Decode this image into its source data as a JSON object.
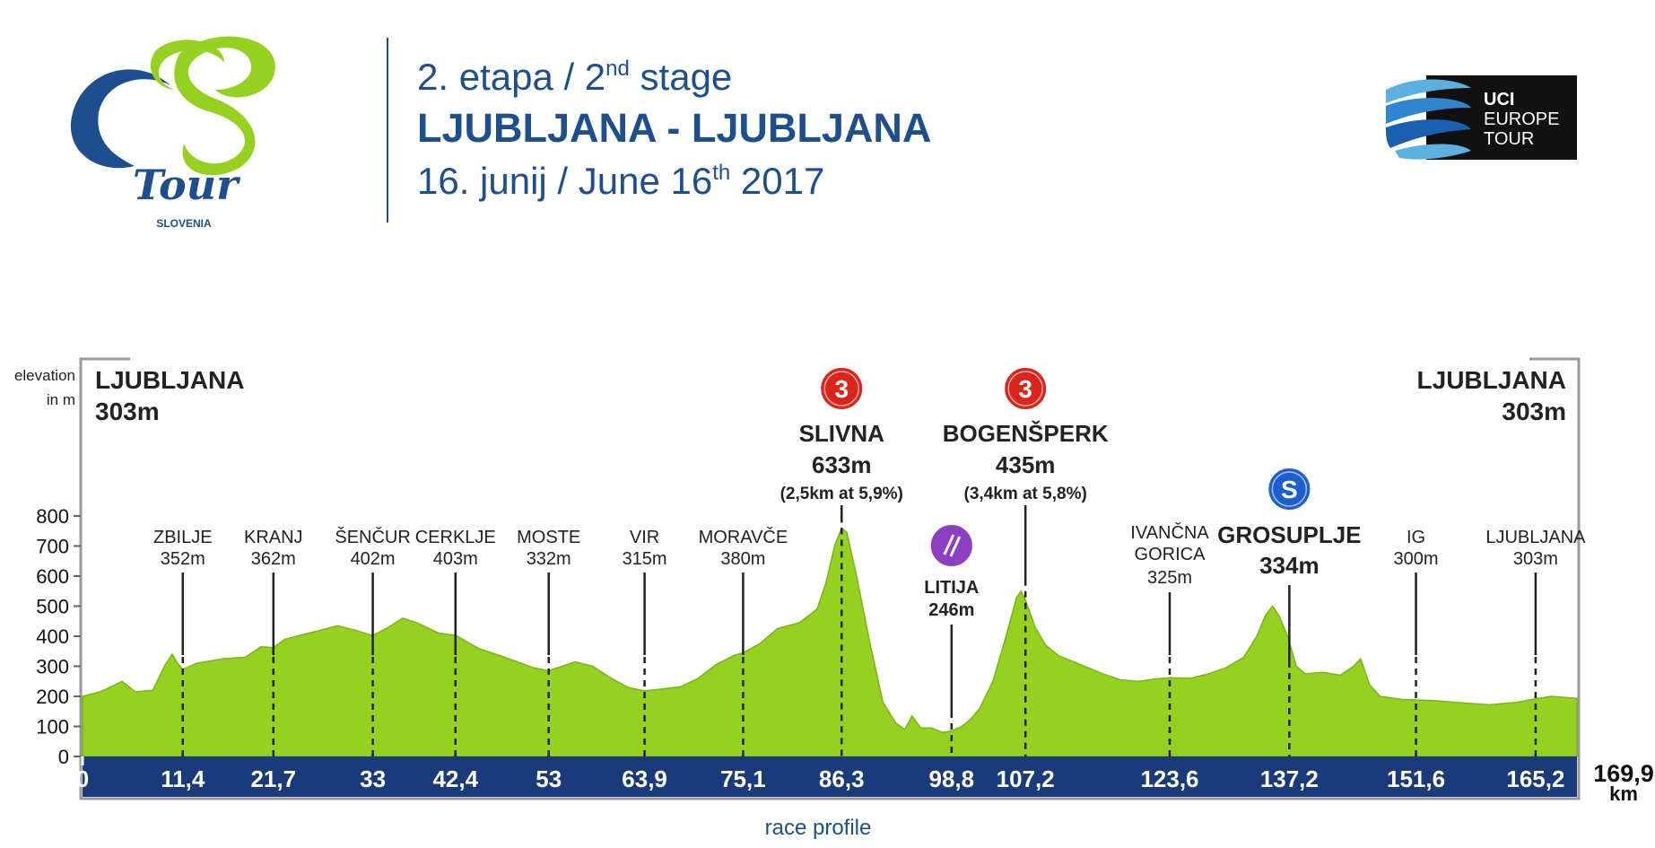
{
  "header": {
    "stage_line": "2. etapa / 2",
    "stage_sup": "nd",
    "stage_tail": " stage",
    "route": "LJUBLJANA - LJUBLJANA",
    "date_line": "16. junij / June 16",
    "date_sup": "th",
    "date_tail": " 2017"
  },
  "logos": {
    "tour_word": "Tour",
    "tour_country": "SLOVENIA",
    "uci_line1": "UCI",
    "uci_line2": "EUROPE",
    "uci_line3": "TOUR"
  },
  "colors": {
    "profile_fill": "#96d020",
    "profile_stroke": "#7ab515",
    "axis_band": "#1b3a7a",
    "header_blue": "#1d4f8f",
    "kom_red": "#d8261c",
    "sprint_blue": "#1e5fd0",
    "feed_purple": "#8e3ec0"
  },
  "chart_data": {
    "type": "area",
    "ylabel_line1": "elevation",
    "ylabel_line2": "in m",
    "xlabel": "race profile",
    "x_unit": "km",
    "ylim": [
      0,
      800
    ],
    "xlim": [
      0,
      169.9
    ],
    "y_ticks": [
      "0",
      "100",
      "200",
      "300",
      "400",
      "500",
      "600",
      "700",
      "800"
    ],
    "x_ticks": [
      "0",
      "11,4",
      "21,7",
      "33",
      "42,4",
      "53",
      "63,9",
      "75,1",
      "86,3",
      "98,8",
      "107,2",
      "123,6",
      "137,2",
      "151,6",
      "165,2",
      "169,9"
    ],
    "x_tick_values": [
      0,
      11.4,
      21.7,
      33,
      42.4,
      53,
      63.9,
      75.1,
      86.3,
      98.8,
      107.2,
      123.6,
      137.2,
      151.6,
      165.2,
      169.9
    ],
    "start": {
      "name": "LJUBLJANA",
      "elev": "303m"
    },
    "finish": {
      "name": "LJUBLJANA",
      "elev": "303m"
    },
    "profile": [
      {
        "x": 0,
        "y": 200
      },
      {
        "x": 2,
        "y": 215
      },
      {
        "x": 4.5,
        "y": 250
      },
      {
        "x": 6,
        "y": 215
      },
      {
        "x": 8,
        "y": 220
      },
      {
        "x": 9.3,
        "y": 300
      },
      {
        "x": 10.2,
        "y": 340
      },
      {
        "x": 10.8,
        "y": 310
      },
      {
        "x": 11.4,
        "y": 290
      },
      {
        "x": 13,
        "y": 310
      },
      {
        "x": 16,
        "y": 325
      },
      {
        "x": 18.5,
        "y": 330
      },
      {
        "x": 20.3,
        "y": 365
      },
      {
        "x": 21.7,
        "y": 362
      },
      {
        "x": 23,
        "y": 390
      },
      {
        "x": 25,
        "y": 405
      },
      {
        "x": 27,
        "y": 420
      },
      {
        "x": 29,
        "y": 435
      },
      {
        "x": 31,
        "y": 420
      },
      {
        "x": 33,
        "y": 402
      },
      {
        "x": 34.5,
        "y": 425
      },
      {
        "x": 36.4,
        "y": 460
      },
      {
        "x": 38,
        "y": 445
      },
      {
        "x": 40.5,
        "y": 410
      },
      {
        "x": 42.4,
        "y": 403
      },
      {
        "x": 45,
        "y": 360
      },
      {
        "x": 48,
        "y": 330
      },
      {
        "x": 51.3,
        "y": 295
      },
      {
        "x": 53,
        "y": 285
      },
      {
        "x": 56,
        "y": 315
      },
      {
        "x": 58,
        "y": 300
      },
      {
        "x": 60,
        "y": 262
      },
      {
        "x": 62,
        "y": 230
      },
      {
        "x": 63.9,
        "y": 218
      },
      {
        "x": 66,
        "y": 225
      },
      {
        "x": 68,
        "y": 232
      },
      {
        "x": 70,
        "y": 260
      },
      {
        "x": 72,
        "y": 305
      },
      {
        "x": 74,
        "y": 335
      },
      {
        "x": 75.1,
        "y": 345
      },
      {
        "x": 77,
        "y": 375
      },
      {
        "x": 79,
        "y": 425
      },
      {
        "x": 81.5,
        "y": 445
      },
      {
        "x": 83.5,
        "y": 490
      },
      {
        "x": 84.5,
        "y": 575
      },
      {
        "x": 85.5,
        "y": 700
      },
      {
        "x": 86.3,
        "y": 760
      },
      {
        "x": 86.9,
        "y": 745
      },
      {
        "x": 88,
        "y": 600
      },
      {
        "x": 89.5,
        "y": 380
      },
      {
        "x": 91,
        "y": 180
      },
      {
        "x": 92.5,
        "y": 110
      },
      {
        "x": 93.5,
        "y": 90
      },
      {
        "x": 94.3,
        "y": 135
      },
      {
        "x": 95.3,
        "y": 95
      },
      {
        "x": 96.5,
        "y": 95
      },
      {
        "x": 97.8,
        "y": 80
      },
      {
        "x": 98.8,
        "y": 85
      },
      {
        "x": 100,
        "y": 100
      },
      {
        "x": 101,
        "y": 125
      },
      {
        "x": 102,
        "y": 160
      },
      {
        "x": 103.5,
        "y": 250
      },
      {
        "x": 105,
        "y": 400
      },
      {
        "x": 106.2,
        "y": 530
      },
      {
        "x": 106.7,
        "y": 550
      },
      {
        "x": 107.2,
        "y": 520
      },
      {
        "x": 108.3,
        "y": 430
      },
      {
        "x": 109.5,
        "y": 370
      },
      {
        "x": 111,
        "y": 335
      },
      {
        "x": 113.5,
        "y": 305
      },
      {
        "x": 116,
        "y": 275
      },
      {
        "x": 118,
        "y": 255
      },
      {
        "x": 120,
        "y": 250
      },
      {
        "x": 122,
        "y": 258
      },
      {
        "x": 123.6,
        "y": 262
      },
      {
        "x": 126,
        "y": 260
      },
      {
        "x": 128,
        "y": 275
      },
      {
        "x": 130,
        "y": 295
      },
      {
        "x": 132,
        "y": 330
      },
      {
        "x": 133.5,
        "y": 400
      },
      {
        "x": 134.5,
        "y": 470
      },
      {
        "x": 135.3,
        "y": 500
      },
      {
        "x": 136,
        "y": 470
      },
      {
        "x": 137,
        "y": 400
      },
      {
        "x": 138,
        "y": 300
      },
      {
        "x": 139,
        "y": 275
      },
      {
        "x": 141,
        "y": 280
      },
      {
        "x": 143,
        "y": 270
      },
      {
        "x": 144.5,
        "y": 300
      },
      {
        "x": 145.3,
        "y": 325
      },
      {
        "x": 146.3,
        "y": 240
      },
      {
        "x": 147.5,
        "y": 200
      },
      {
        "x": 150,
        "y": 190
      },
      {
        "x": 151.6,
        "y": 188
      },
      {
        "x": 154,
        "y": 185
      },
      {
        "x": 157,
        "y": 178
      },
      {
        "x": 160,
        "y": 172
      },
      {
        "x": 163,
        "y": 180
      },
      {
        "x": 165.2,
        "y": 192
      },
      {
        "x": 167,
        "y": 200
      },
      {
        "x": 169.9,
        "y": 193
      }
    ],
    "places": [
      {
        "x": 11.4,
        "name": "ZBILJE",
        "elev": "352m",
        "style": "small"
      },
      {
        "x": 21.7,
        "name": "KRANJ",
        "elev": "362m",
        "style": "small"
      },
      {
        "x": 33,
        "name": "ŠENČUR",
        "elev": "402m",
        "style": "small"
      },
      {
        "x": 42.4,
        "name": "CERKLJE",
        "elev": "403m",
        "style": "small"
      },
      {
        "x": 53,
        "name": "MOSTE",
        "elev": "332m",
        "style": "small"
      },
      {
        "x": 63.9,
        "name": "VIR",
        "elev": "315m",
        "style": "small"
      },
      {
        "x": 75.1,
        "name": "MORAVČE",
        "elev": "380m",
        "style": "small"
      },
      {
        "x": 86.3,
        "name": "SLIVNA",
        "elev": "633m",
        "detail": "(2,5km at 5,9%)",
        "style": "kom",
        "badge": "3"
      },
      {
        "x": 98.8,
        "name": "LITIJA",
        "elev": "246m",
        "style": "feed"
      },
      {
        "x": 107.2,
        "name": "BOGENŠPERK",
        "elev": "435m",
        "detail": "(3,4km at 5,8%)",
        "style": "kom",
        "badge": "3"
      },
      {
        "x": 123.6,
        "name": "IVANČNA",
        "name2": "GORICA",
        "elev": "325m",
        "style": "small"
      },
      {
        "x": 137.2,
        "name": "GROSUPLJE",
        "elev": "334m",
        "style": "sprint",
        "badge": "S"
      },
      {
        "x": 151.6,
        "name": "IG",
        "elev": "300m",
        "style": "small"
      },
      {
        "x": 165.2,
        "name": "LJUBLJANA",
        "elev": "303m",
        "style": "small"
      }
    ]
  }
}
